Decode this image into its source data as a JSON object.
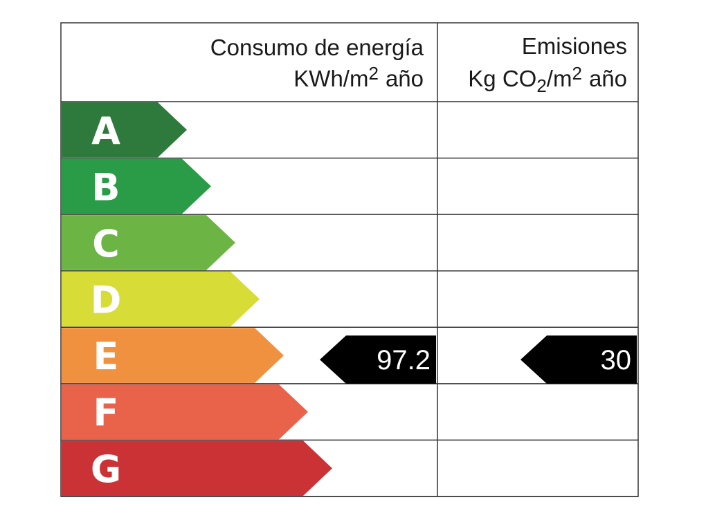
{
  "header": {
    "consumption": {
      "title": "Consumo de energía",
      "unit": [
        "KWh/m",
        "2",
        "año"
      ]
    },
    "emissions": {
      "title": "Emisiones",
      "unit": [
        "Kg CO",
        "2",
        "/m",
        "2",
        "año"
      ]
    }
  },
  "ratings": [
    {
      "letter": "A",
      "color": "#2e7a3c"
    },
    {
      "letter": "B",
      "color": "#2a9b47"
    },
    {
      "letter": "C",
      "color": "#6cb444"
    },
    {
      "letter": "D",
      "color": "#d8dc36"
    },
    {
      "letter": "E",
      "color": "#f0913f"
    },
    {
      "letter": "F",
      "color": "#e9634b"
    },
    {
      "letter": "G",
      "color": "#cb3236"
    }
  ],
  "consumption": {
    "value": "97.2",
    "rating": "E"
  },
  "emissions": {
    "value": "30",
    "rating": "E"
  }
}
